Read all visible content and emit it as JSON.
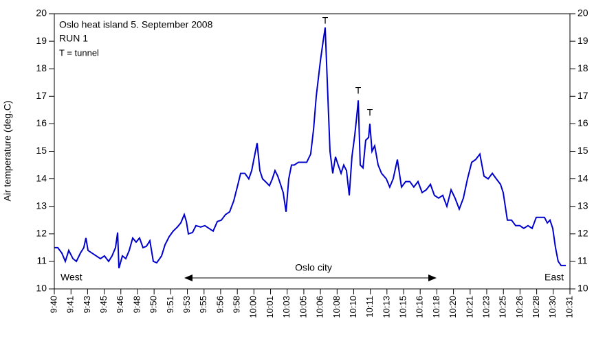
{
  "chart_data": {
    "type": "line",
    "title": "Oslo heat island 5. September 2008",
    "subtitle": "RUN 1",
    "note": "T = tunnel",
    "tunnel_marks": [
      "T",
      "T",
      "T"
    ],
    "region_labels": {
      "west": "West",
      "city": "Oslo city",
      "east": "East"
    },
    "y_label": "Air temperature (deg.C)",
    "x": [
      580.0,
      580.34,
      580.75,
      581.09,
      581.43,
      581.84,
      582.18,
      582.58,
      582.92,
      583.13,
      583.33,
      583.74,
      584.15,
      584.56,
      584.96,
      585.37,
      585.71,
      586.05,
      586.26,
      586.39,
      586.73,
      587.07,
      587.41,
      587.75,
      588.09,
      588.43,
      588.77,
      589.11,
      589.45,
      589.79,
      590.13,
      590.61,
      590.95,
      591.36,
      591.76,
      592.17,
      592.51,
      592.85,
      593.06,
      593.26,
      593.67,
      594.01,
      594.48,
      594.89,
      595.3,
      595.71,
      596.12,
      596.52,
      596.93,
      597.34,
      597.75,
      598.16,
      598.43,
      598.84,
      599.24,
      599.52,
      599.79,
      600.06,
      600.33,
      600.6,
      600.88,
      601.28,
      601.56,
      601.83,
      602.1,
      602.37,
      602.64,
      602.92,
      603.19,
      603.46,
      603.73,
      604.14,
      604.55,
      604.96,
      605.36,
      605.64,
      605.91,
      606.32,
      606.59,
      606.79,
      607.0,
      607.27,
      607.54,
      607.81,
      608.08,
      608.36,
      608.63,
      608.9,
      609.17,
      609.44,
      609.72,
      609.92,
      610.06,
      610.26,
      610.53,
      610.8,
      611.08,
      611.21,
      611.42,
      611.69,
      612.03,
      612.37,
      612.84,
      613.18,
      613.52,
      613.93,
      614.34,
      614.75,
      615.16,
      615.56,
      615.97,
      616.38,
      616.79,
      617.2,
      617.6,
      618.01,
      618.42,
      618.83,
      619.24,
      619.64,
      620.05,
      620.46,
      620.87,
      621.28,
      621.68,
      622.09,
      622.5,
      622.91,
      623.32,
      623.72,
      624.13,
      624.4,
      624.81,
      625.22,
      625.63,
      626.04,
      626.44,
      626.85,
      627.26,
      627.67,
      628.08,
      628.48,
      628.76,
      629.03,
      629.3,
      629.57,
      629.84,
      630.12,
      630.39,
      630.59
    ],
    "series": [
      {
        "name": "Air temperature",
        "color": "#0000cc",
        "values": [
          11.5,
          11.5,
          11.3,
          11.0,
          11.4,
          11.1,
          11.0,
          11.3,
          11.5,
          11.85,
          11.4,
          11.3,
          11.2,
          11.1,
          11.2,
          11.0,
          11.2,
          11.5,
          12.05,
          10.75,
          11.2,
          11.1,
          11.4,
          11.85,
          11.7,
          11.85,
          11.5,
          11.55,
          11.75,
          11.0,
          10.95,
          11.2,
          11.6,
          11.9,
          12.1,
          12.25,
          12.4,
          12.7,
          12.45,
          12.0,
          12.05,
          12.3,
          12.25,
          12.3,
          12.2,
          12.1,
          12.45,
          12.5,
          12.7,
          12.8,
          13.2,
          13.8,
          14.2,
          14.2,
          14.0,
          14.3,
          14.8,
          15.3,
          14.3,
          14.0,
          13.9,
          13.75,
          14.0,
          14.3,
          14.1,
          13.8,
          13.5,
          12.8,
          14.0,
          14.5,
          14.5,
          14.6,
          14.6,
          14.6,
          14.9,
          15.8,
          17.0,
          18.3,
          19.0,
          19.5,
          17.5,
          15.0,
          14.2,
          14.8,
          14.5,
          14.2,
          14.5,
          14.3,
          13.4,
          14.8,
          15.6,
          16.3,
          16.85,
          14.5,
          14.4,
          15.4,
          15.5,
          16.0,
          15.0,
          15.2,
          14.5,
          14.2,
          14.0,
          13.7,
          14.0,
          14.7,
          13.7,
          13.9,
          13.9,
          13.7,
          13.9,
          13.5,
          13.6,
          13.8,
          13.4,
          13.3,
          13.4,
          13.0,
          13.6,
          13.3,
          12.9,
          13.3,
          14.0,
          14.6,
          14.7,
          14.9,
          14.1,
          14.0,
          14.2,
          14.0,
          13.8,
          13.5,
          12.5,
          12.5,
          12.3,
          12.3,
          12.2,
          12.3,
          12.2,
          12.6,
          12.6,
          12.6,
          12.4,
          12.5,
          12.2,
          11.5,
          11.0,
          10.85,
          10.85,
          10.85
        ]
      }
    ],
    "xlim": [
      580,
      631
    ],
    "xticks": [
      {
        "value": 580,
        "label": "9:40"
      },
      {
        "value": 581.65,
        "label": "9:41"
      },
      {
        "value": 583.29,
        "label": "9:43"
      },
      {
        "value": 584.94,
        "label": "9:45"
      },
      {
        "value": 586.58,
        "label": "9:46"
      },
      {
        "value": 588.23,
        "label": "9:48"
      },
      {
        "value": 589.87,
        "label": "9:50"
      },
      {
        "value": 591.52,
        "label": "9:51"
      },
      {
        "value": 593.16,
        "label": "9:53"
      },
      {
        "value": 594.81,
        "label": "9:55"
      },
      {
        "value": 596.45,
        "label": "9:56"
      },
      {
        "value": 598.1,
        "label": "9:58"
      },
      {
        "value": 599.74,
        "label": "10:00"
      },
      {
        "value": 601.39,
        "label": "10:01"
      },
      {
        "value": 603.03,
        "label": "10:03"
      },
      {
        "value": 604.68,
        "label": "10:05"
      },
      {
        "value": 606.32,
        "label": "10:06"
      },
      {
        "value": 607.97,
        "label": "10:08"
      },
      {
        "value": 609.61,
        "label": "10:10"
      },
      {
        "value": 611.26,
        "label": "10:11"
      },
      {
        "value": 612.9,
        "label": "10:13"
      },
      {
        "value": 614.55,
        "label": "10:15"
      },
      {
        "value": 616.19,
        "label": "10:16"
      },
      {
        "value": 617.84,
        "label": "10:18"
      },
      {
        "value": 619.48,
        "label": "10:20"
      },
      {
        "value": 621.13,
        "label": "10:21"
      },
      {
        "value": 622.77,
        "label": "10:23"
      },
      {
        "value": 624.42,
        "label": "10:25"
      },
      {
        "value": 626.06,
        "label": "10:26"
      },
      {
        "value": 627.71,
        "label": "10:28"
      },
      {
        "value": 629.35,
        "label": "10:30"
      },
      {
        "value": 631,
        "label": "10:31"
      }
    ],
    "ylim": [
      10,
      20
    ],
    "yticks": [
      10,
      11,
      12,
      13,
      14,
      15,
      16,
      17,
      18,
      19,
      20
    ],
    "y2lim": [
      10,
      20
    ],
    "y2ticks": [
      10,
      11,
      12,
      13,
      14,
      15,
      16,
      17,
      18,
      19,
      20
    ],
    "grid": false
  }
}
